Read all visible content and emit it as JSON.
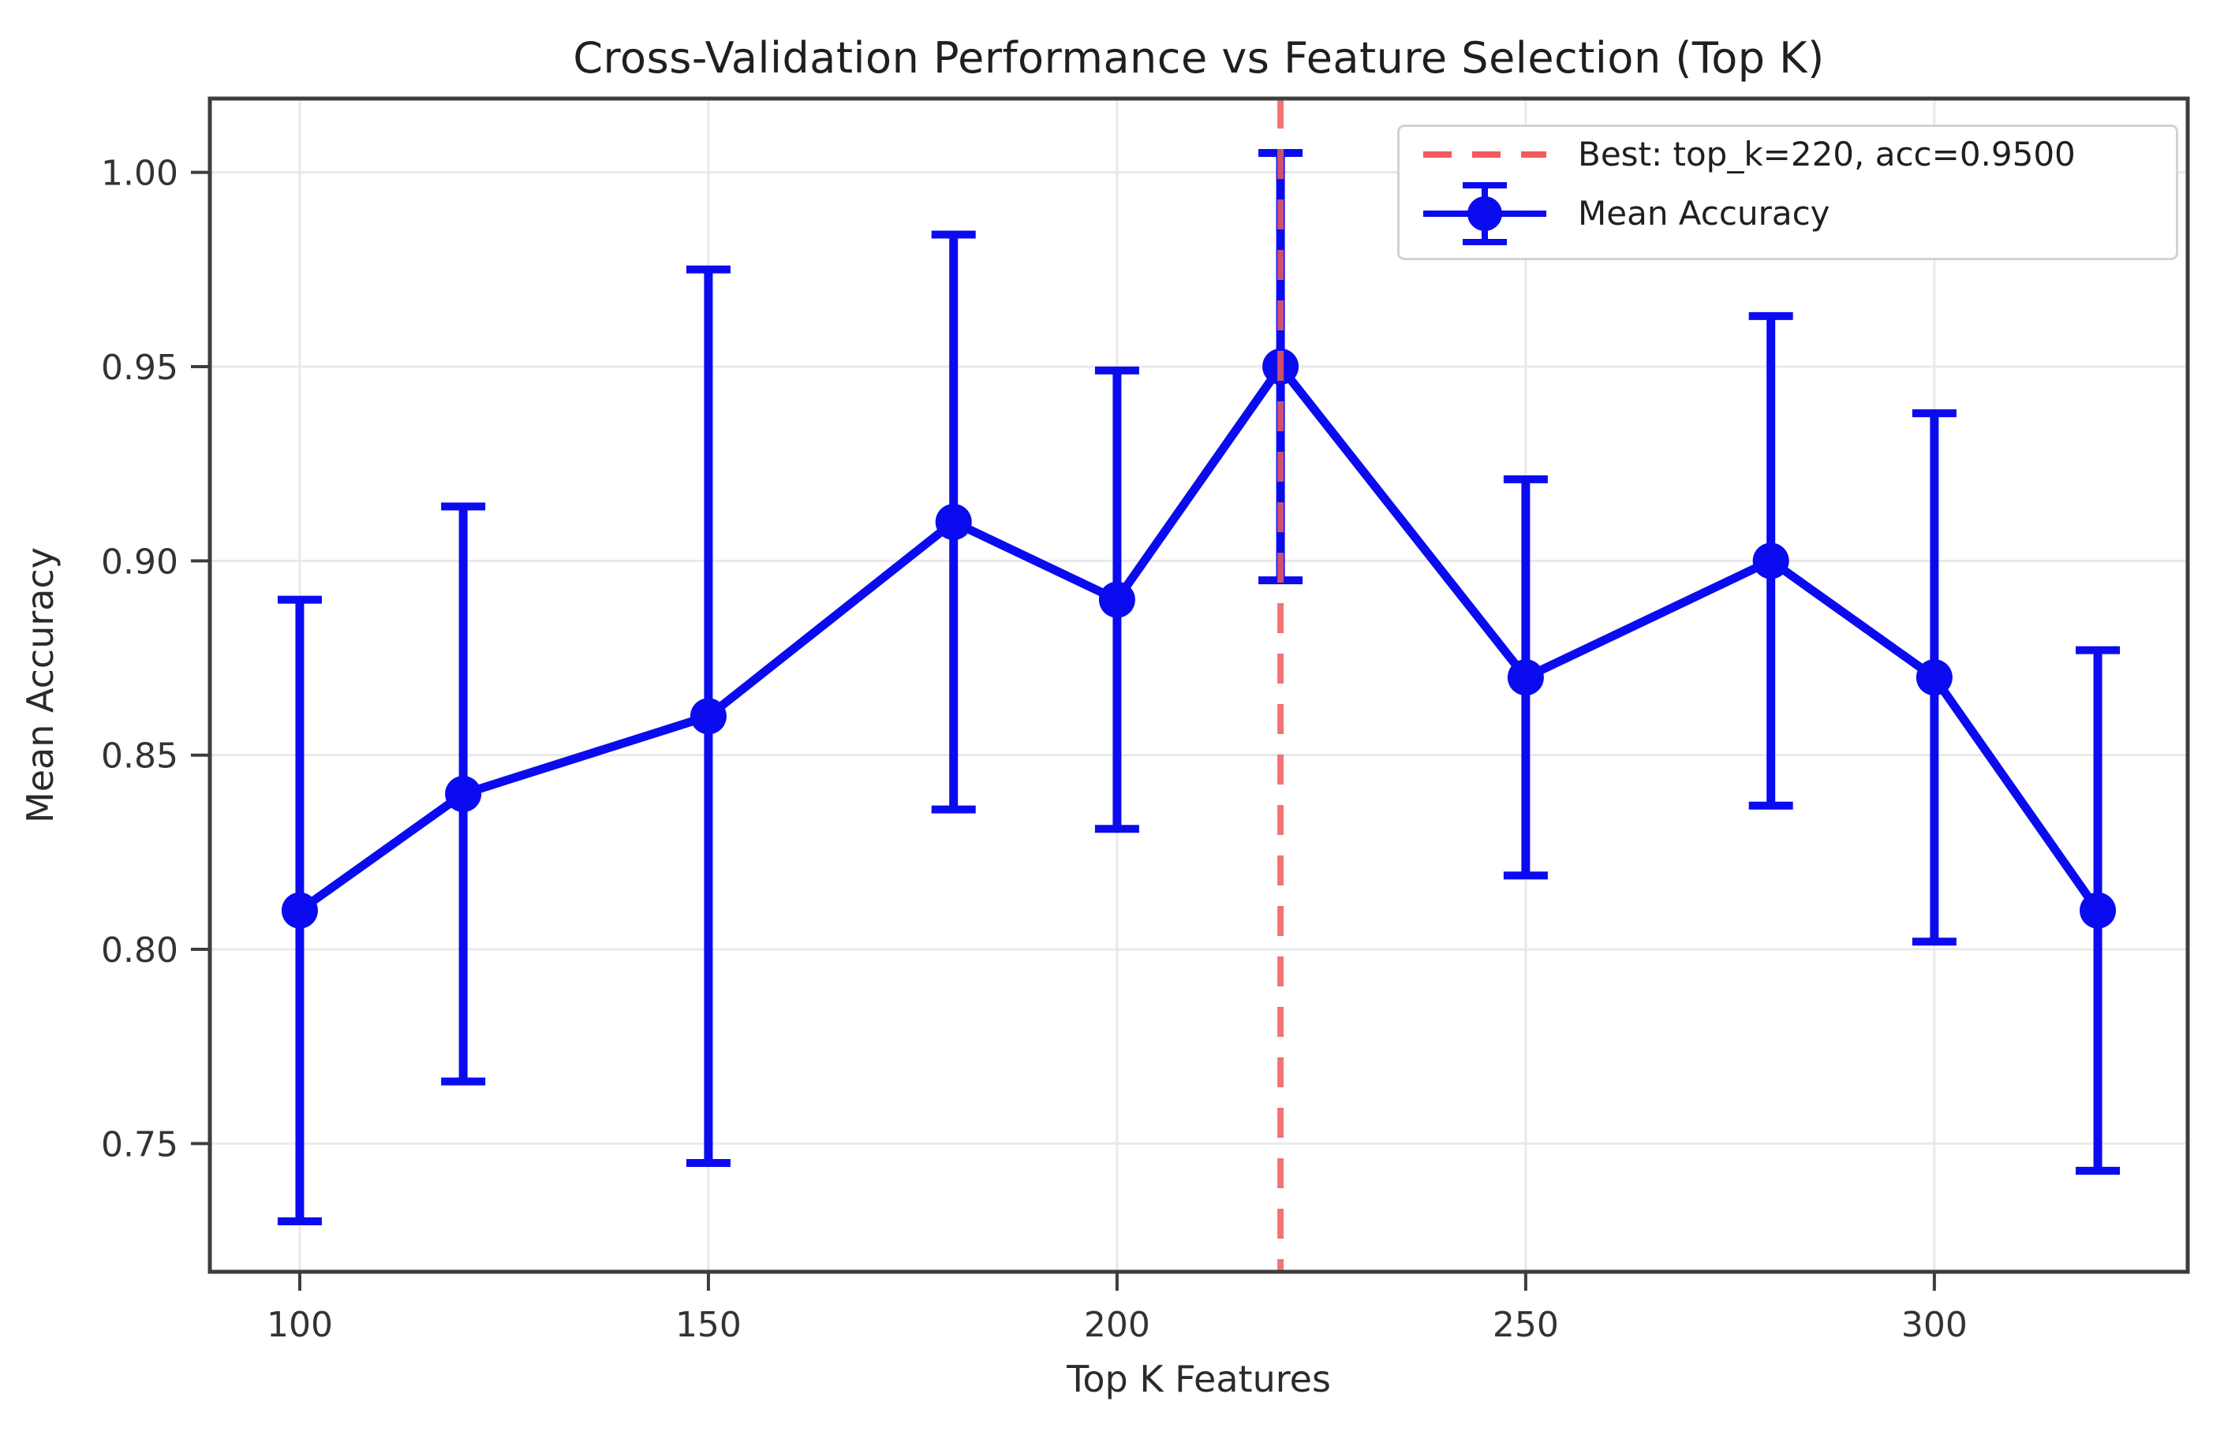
{
  "chart_data": {
    "type": "line",
    "title": "Cross-Validation Performance vs Feature Selection (Top K)",
    "xlabel": "Top K Features",
    "ylabel": "Mean Accuracy",
    "x": [
      100,
      120,
      150,
      180,
      200,
      220,
      250,
      280,
      300,
      320
    ],
    "series": [
      {
        "name": "Mean Accuracy",
        "values": [
          0.81,
          0.84,
          0.86,
          0.91,
          0.89,
          0.95,
          0.87,
          0.9,
          0.87,
          0.81
        ],
        "errors": [
          0.08,
          0.074,
          0.115,
          0.074,
          0.059,
          0.055,
          0.051,
          0.063,
          0.068,
          0.067
        ]
      }
    ],
    "best_line": {
      "x": 220,
      "acc": "0.9500"
    },
    "legend": {
      "position": "upper right",
      "entries": [
        {
          "label": "Best: top_k=220, acc=0.9500",
          "marker": "dashed-line"
        },
        {
          "label": "Mean Accuracy",
          "marker": "errorbar"
        }
      ]
    },
    "x_ticks": {
      "values": [
        100,
        150,
        200,
        250,
        300
      ],
      "labels": [
        "100",
        "150",
        "200",
        "250",
        "300"
      ]
    },
    "y_ticks": {
      "values": [
        1.0,
        0.95,
        0.9,
        0.85,
        0.8,
        0.75
      ],
      "labels": [
        "1.00",
        "0.95",
        "0.90",
        "0.85",
        "0.80",
        "0.75"
      ]
    },
    "xlim": [
      89,
      331
    ],
    "ylim": [
      0.717,
      1.019
    ],
    "grid": true,
    "colors": {
      "series": "#0b0bf0",
      "best_line": "#f25b5b",
      "grid": "#e9e9e9",
      "spine": "#3d3d3d",
      "tick_text": "#333333"
    }
  }
}
